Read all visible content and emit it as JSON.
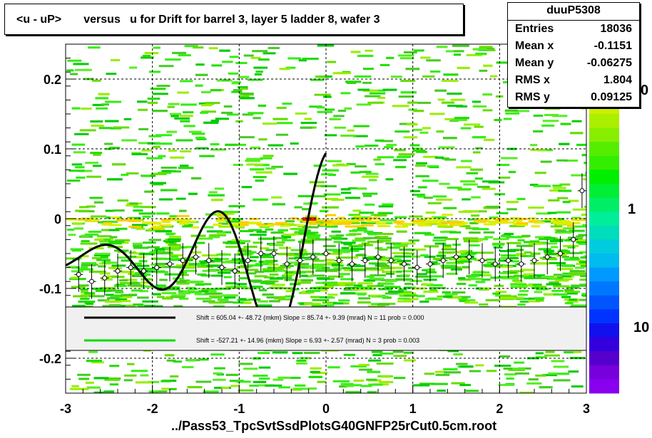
{
  "title": "<u - uP>       versus   u for Drift for barrel 3, layer 5 ladder 8, wafer 3",
  "stats": {
    "name": "duuP5308",
    "rows": [
      {
        "label": "Entries",
        "value": "18036"
      },
      {
        "label": "Mean x",
        "value": "-0.1151"
      },
      {
        "label": "Mean y",
        "value": "-0.06275"
      },
      {
        "label": "RMS x",
        "value": "1.804"
      },
      {
        "label": "RMS y",
        "value": "0.09125"
      }
    ]
  },
  "footer": "../Pass53_TpcSvtSsdPlotsG40GNFP25rCut0.5cm.root",
  "legend": [
    {
      "color": "#000000",
      "text": "Shift =   605.04 +- 48.72 (mkm) Slope =    85.74 +- 9.39 (mrad)  N = 11 prob = 0.000"
    },
    {
      "color": "#00dd00",
      "text": "Shift =  -527.21 +- 14.96 (mkm) Slope =     6.93 +- 2.57 (mrad)  N = 3 prob = 0.003"
    }
  ],
  "chart_data": {
    "type": "heatmap",
    "title": "<u - uP>       versus   u for Drift for barrel 3, layer 5 ladder 8, wafer 3",
    "xlabel": "",
    "ylabel": "",
    "xlim": [
      -3,
      3
    ],
    "ylim": [
      -0.25,
      0.25
    ],
    "x_ticks": [
      -3,
      -2,
      -1,
      0,
      1,
      2,
      3
    ],
    "y_ticks": [
      -0.2,
      -0.1,
      0,
      0.1,
      0.2
    ],
    "x_tick_labels": [
      "-3",
      "-2",
      "-1",
      "0",
      "1",
      "2",
      "3"
    ],
    "y_tick_labels": [
      "-0.2",
      "-0.1",
      "0",
      "0.1",
      "0.2"
    ],
    "grid": true,
    "colorbar_ticks": [
      {
        "label": "1",
        "value": 1
      },
      {
        "label": "10",
        "value": 10
      }
    ],
    "colorbar_partial_label": "0",
    "profile_points": {
      "x": [
        -2.85,
        -2.7,
        -2.55,
        -2.4,
        -2.25,
        -2.1,
        -1.95,
        -1.8,
        -1.65,
        -1.5,
        -1.35,
        -1.2,
        -1.05,
        -0.9,
        -0.75,
        -0.6,
        -0.45,
        -0.3,
        -0.15,
        0.0,
        0.15,
        0.3,
        0.45,
        0.6,
        0.75,
        0.9,
        1.05,
        1.2,
        1.35,
        1.5,
        1.65,
        1.8,
        1.95,
        2.1,
        2.25,
        2.4,
        2.55,
        2.7,
        2.85,
        2.95
      ],
      "y": [
        -0.08,
        -0.09,
        -0.085,
        -0.075,
        -0.07,
        -0.075,
        -0.07,
        -0.065,
        -0.06,
        -0.055,
        -0.06,
        -0.07,
        -0.075,
        -0.06,
        -0.05,
        -0.05,
        -0.065,
        -0.06,
        -0.055,
        -0.05,
        -0.06,
        -0.065,
        -0.06,
        -0.055,
        -0.06,
        -0.065,
        -0.07,
        -0.065,
        -0.06,
        -0.055,
        -0.055,
        -0.06,
        -0.065,
        -0.06,
        -0.065,
        -0.06,
        -0.055,
        -0.05,
        -0.03,
        0.04
      ]
    },
    "fit_curves": [
      {
        "color": "#000000",
        "shift_mkm": 605.04,
        "slope_mrad": 85.74,
        "N": 11
      },
      {
        "color": "#00dd00",
        "shift_mkm": -527.21,
        "slope_mrad": 6.93,
        "N": 3
      }
    ]
  }
}
